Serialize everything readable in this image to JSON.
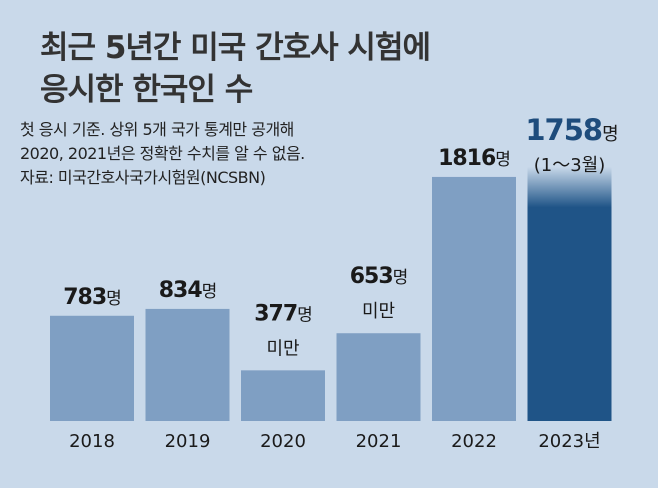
{
  "title_lines": [
    "최근 5년간 미국 간호사 시험에",
    "응시한 한국인 수"
  ],
  "notes": [
    "첫 응시 기준. 상위 5개 국가 통계만 공개해",
    "2020, 2021년은 정확한 수치를 알 수 없음.",
    "자료: 미국간호사국가시험원(NCSBN)"
  ],
  "colors": {
    "background": "#c9d9ea",
    "bar": "#7f9fc3",
    "highlight_bar": "#1f5487",
    "highlight_text": "#1e4c7c"
  },
  "chart_data": {
    "type": "bar",
    "title": "최근 5년간 미국 간호사 시험에 응시한 한국인 수",
    "categories": [
      "2018",
      "2019",
      "2020",
      "2021",
      "2022",
      "2023"
    ],
    "tick_labels": [
      "2018",
      "2019",
      "2020",
      "2021",
      "2022",
      "2023년"
    ],
    "values": [
      783,
      834,
      377,
      653,
      1816,
      1758
    ],
    "value_labels": [
      "783",
      "834",
      "377",
      "653",
      "1816",
      "1758"
    ],
    "unit": "명",
    "qualifiers": [
      "",
      "",
      "미만",
      "미만",
      "",
      "(1～3월)"
    ],
    "highlight_index": 5,
    "value_note": "2020, 2021년은 정확한 수치를 알 수 없음",
    "source": "미국간호사국가시험원(NCSBN)"
  }
}
